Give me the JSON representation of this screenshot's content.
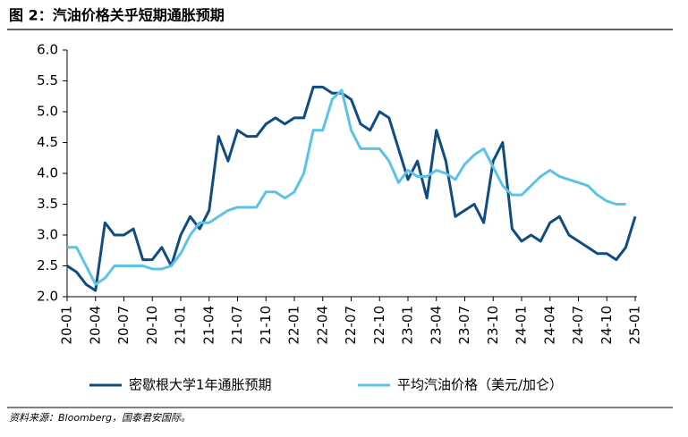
{
  "chart_data": {
    "type": "line",
    "title": "图 2：汽油价格关乎短期通胀预期",
    "source": "资料来源：Bloomberg，国泰君安国际。",
    "categories": [
      "20-01",
      null,
      null,
      "20-04",
      null,
      null,
      "20-07",
      null,
      null,
      "20-10",
      null,
      null,
      "21-01",
      null,
      null,
      "21-04",
      null,
      null,
      "21-07",
      null,
      null,
      "21-10",
      null,
      null,
      "22-01",
      null,
      null,
      "22-04",
      null,
      null,
      "22-07",
      null,
      null,
      "22-10",
      null,
      null,
      "23-01",
      null,
      null,
      "23-04",
      null,
      null,
      "23-07",
      null,
      null,
      "23-10",
      null,
      null,
      "24-01",
      null,
      null,
      "24-04",
      null,
      null,
      "24-07",
      null,
      null,
      "24-10",
      null,
      null,
      "25-01"
    ],
    "series": [
      {
        "name": "密歇根大学1年通胀预期",
        "color": "#0f4c81",
        "values": [
          2.5,
          2.4,
          2.2,
          2.1,
          3.2,
          3.0,
          3.0,
          3.1,
          2.6,
          2.6,
          2.8,
          2.5,
          3.0,
          3.3,
          3.1,
          3.4,
          4.6,
          4.2,
          4.7,
          4.6,
          4.6,
          4.8,
          4.9,
          4.8,
          4.9,
          4.9,
          5.4,
          5.4,
          5.3,
          5.3,
          5.2,
          4.8,
          4.7,
          5.0,
          4.9,
          4.4,
          3.9,
          4.2,
          3.6,
          4.7,
          4.2,
          3.3,
          3.4,
          3.5,
          3.2,
          4.2,
          4.5,
          3.1,
          2.9,
          3.0,
          2.9,
          3.2,
          3.3,
          3.0,
          2.9,
          2.8,
          2.7,
          2.7,
          2.6,
          2.8,
          3.3
        ]
      },
      {
        "name": "平均汽油价格（美元/加仑）",
        "color": "#5bc4e6",
        "values": [
          2.8,
          2.8,
          2.5,
          2.2,
          2.3,
          2.5,
          2.5,
          2.5,
          2.5,
          2.45,
          2.45,
          2.5,
          2.7,
          3.0,
          3.2,
          3.2,
          3.3,
          3.4,
          3.45,
          3.45,
          3.45,
          3.7,
          3.7,
          3.6,
          3.7,
          4.0,
          4.7,
          4.7,
          5.2,
          5.35,
          4.7,
          4.4,
          4.4,
          4.4,
          4.2,
          3.85,
          4.05,
          3.95,
          3.95,
          4.05,
          4.0,
          3.9,
          4.15,
          4.3,
          4.4,
          4.1,
          3.8,
          3.65,
          3.65,
          3.8,
          3.95,
          4.05,
          3.95,
          3.9,
          3.85,
          3.8,
          3.65,
          3.55,
          3.5,
          3.5,
          null
        ]
      }
    ],
    "ylim": [
      2,
      6
    ],
    "yticks": [
      {
        "value": 2,
        "label": "2.0"
      },
      2.5,
      {
        "value": 3,
        "label": "3.0"
      },
      3.5,
      {
        "value": 4,
        "label": "4.0"
      },
      4.5,
      {
        "value": 5,
        "label": "5.0"
      },
      5.5,
      {
        "value": 6,
        "label": "6.0"
      }
    ],
    "legend": "bottom"
  }
}
